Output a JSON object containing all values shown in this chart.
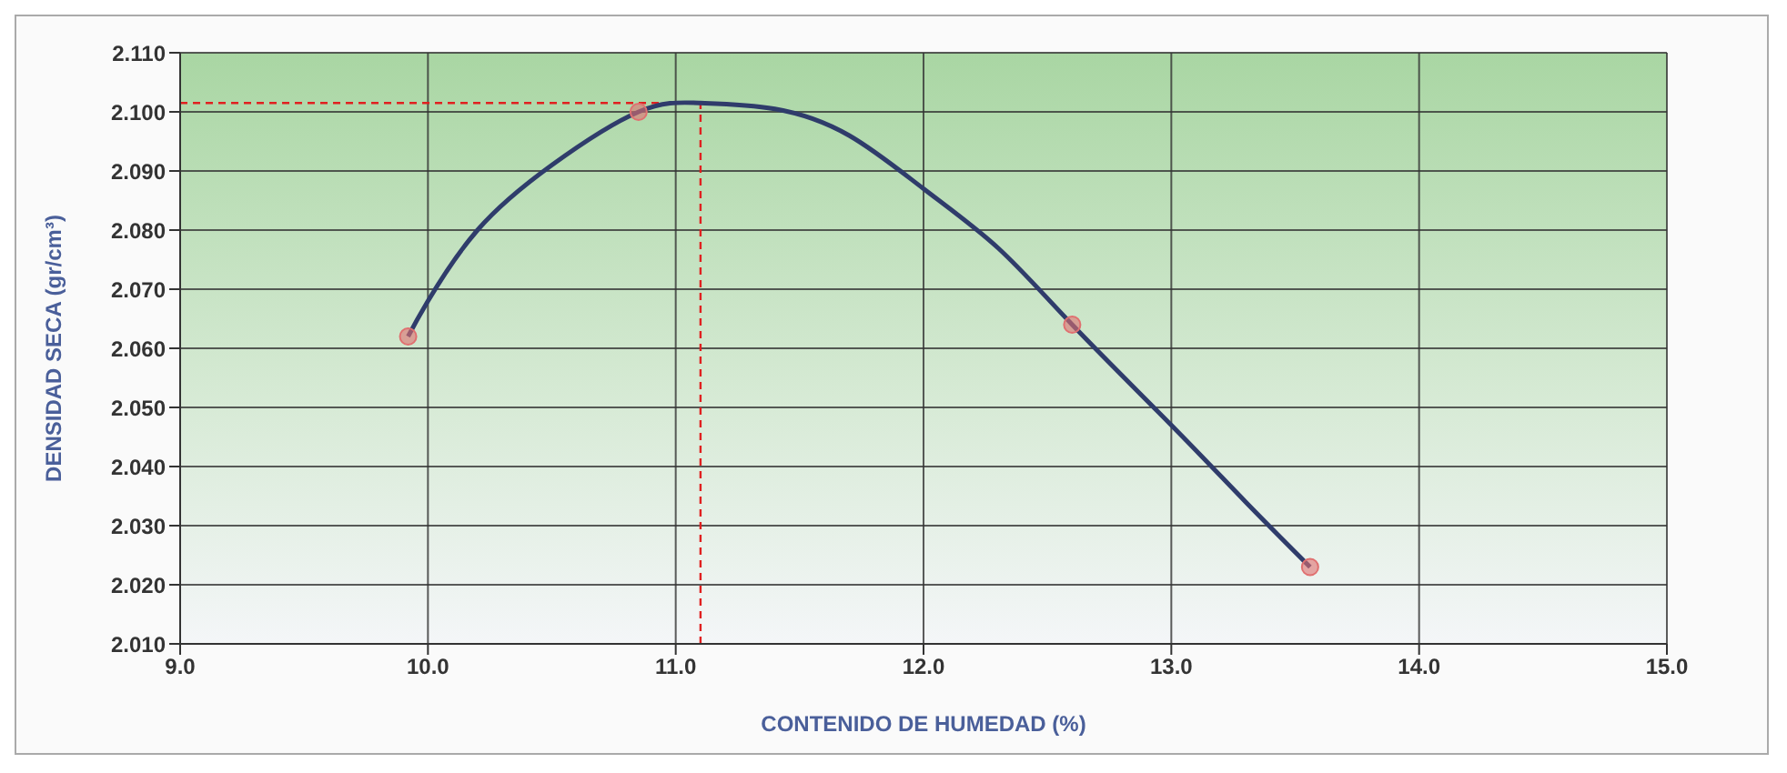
{
  "chart_data": {
    "type": "scatter",
    "xlabel": "CONTENIDO DE HUMEDAD (%)",
    "ylabel": "DENSIDAD SECA (gr/cm³)",
    "xlim": [
      9,
      15
    ],
    "xticks": [
      {
        "value": 9,
        "label": "9.0"
      },
      {
        "value": 10,
        "label": "10.0"
      },
      {
        "value": 11,
        "label": "11.0"
      },
      {
        "value": 12,
        "label": "12.0"
      },
      {
        "value": 13,
        "label": "13.0"
      },
      {
        "value": 14,
        "label": "14.0"
      },
      {
        "value": 15,
        "label": "15.0"
      }
    ],
    "ylim": [
      2.01,
      2.11
    ],
    "yticks": [
      {
        "value": 2.01,
        "label": "2.010"
      },
      {
        "value": 2.02,
        "label": "2.020"
      },
      {
        "value": 2.03,
        "label": "2.030"
      },
      {
        "value": 2.04,
        "label": "2.040"
      },
      {
        "value": 2.05,
        "label": "2.050"
      },
      {
        "value": 2.06,
        "label": "2.060"
      },
      {
        "value": 2.07,
        "label": "2.070"
      },
      {
        "value": 2.08,
        "label": "2.080"
      },
      {
        "value": 2.09,
        "label": "2.090"
      },
      {
        "value": 2.1,
        "label": "2.100"
      },
      {
        "value": 2.11,
        "label": "2.110"
      }
    ],
    "grid": true,
    "series": [
      {
        "type": "line",
        "color": "#2f3c6b",
        "marker": "none",
        "line_style": "solid",
        "x": [
          9.92,
          10.0,
          10.2,
          10.5,
          10.85,
          11.1,
          11.4,
          11.7,
          12.0,
          12.3,
          12.6,
          13.0,
          13.3,
          13.56
        ],
        "values": [
          2.062,
          2.068,
          2.08,
          2.091,
          2.1,
          2.1015,
          2.1005,
          2.096,
          2.087,
          2.077,
          2.064,
          2.047,
          2.034,
          2.023
        ]
      },
      {
        "color": "#e07070",
        "marker": "circle",
        "x": [
          9.92,
          10.85,
          12.6,
          13.56
        ],
        "values": [
          2.062,
          2.1,
          2.064,
          2.023
        ]
      }
    ],
    "ref_lines": [
      {
        "axis": "x",
        "value": 11.1,
        "color": "#e02020",
        "line_style": "dashed"
      },
      {
        "axis": "y",
        "value": 2.1015,
        "color": "#e02020",
        "line_style": "dashed"
      }
    ]
  }
}
